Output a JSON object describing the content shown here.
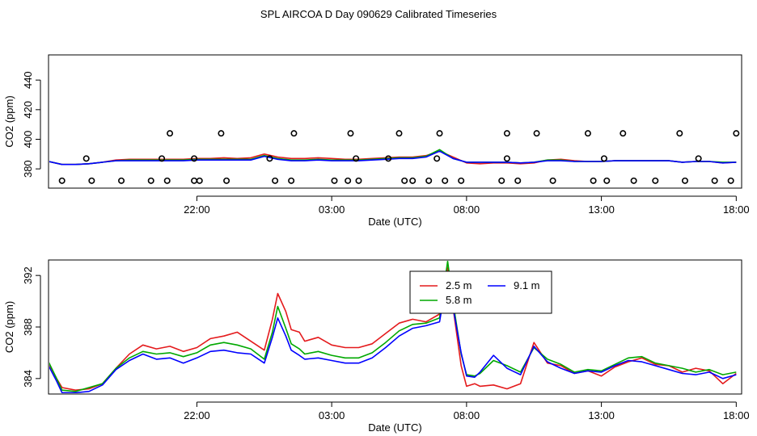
{
  "title": "SPL AIRCOA D  Day 090629  Calibrated Timeseries",
  "chart_data": [
    {
      "type": "line",
      "id": "top",
      "xlabel": "Date (UTC)",
      "ylabel": "CO2 (ppm)",
      "x_unit": "hours since 00:00 UTC",
      "xlim": [
        16.5,
        18.2
      ],
      "x_ticks": [
        22,
        27,
        32,
        37,
        42
      ],
      "x_tick_labels": [
        "22:00",
        "03:00",
        "08:00",
        "13:00",
        "18:00"
      ],
      "ylim": [
        367,
        457
      ],
      "y_ticks": [
        380,
        400,
        420,
        440
      ],
      "grid": false,
      "series": [
        {
          "key": "s25",
          "color": "#e41a1c",
          "x": [
            16.5,
            17.0,
            17.5,
            18.0,
            18.5,
            19.0,
            19.5,
            20.0,
            20.5,
            21.0,
            21.5,
            22.0,
            22.5,
            23.0,
            23.5,
            24.0,
            24.5,
            25.0,
            25.5,
            26.0,
            26.5,
            27.0,
            27.5,
            28.0,
            28.5,
            29.0,
            29.5,
            30.0,
            30.5,
            31.0,
            31.5,
            32.0,
            32.5,
            33.0,
            33.5,
            34.0,
            34.5,
            35.0,
            35.5,
            36.0,
            36.5,
            37.0,
            37.5,
            38.0,
            38.5,
            39.0,
            39.5,
            40.0,
            40.5,
            41.0,
            41.5,
            42.0
          ],
          "y": [
            385,
            383,
            383,
            383.5,
            384.5,
            386,
            386.5,
            386.5,
            386.5,
            386.5,
            386.5,
            387,
            387,
            387.5,
            387,
            387.5,
            390,
            388,
            387,
            387,
            387.5,
            387,
            386.5,
            386.5,
            387,
            387.5,
            388,
            388,
            389,
            392,
            388,
            384,
            383.5,
            384,
            384,
            383.5,
            384,
            386,
            386.5,
            385.5,
            385,
            385,
            385.5,
            385.5,
            385.5,
            385.5,
            385.5,
            384.5,
            385,
            385,
            384,
            384.5
          ]
        },
        {
          "key": "s58",
          "color": "#00a800",
          "x": [
            16.5,
            17.0,
            17.5,
            18.0,
            18.5,
            19.0,
            19.5,
            20.0,
            20.5,
            21.0,
            21.5,
            22.0,
            22.5,
            23.0,
            23.5,
            24.0,
            24.5,
            25.0,
            25.5,
            26.0,
            26.5,
            27.0,
            27.5,
            28.0,
            28.5,
            29.0,
            29.5,
            30.0,
            30.5,
            31.0,
            31.5,
            32.0,
            32.5,
            33.0,
            33.5,
            34.0,
            34.5,
            35.0,
            35.5,
            36.0,
            36.5,
            37.0,
            37.5,
            38.0,
            38.5,
            39.0,
            39.5,
            40.0,
            40.5,
            41.0,
            41.5,
            42.0
          ],
          "y": [
            385,
            383,
            383,
            383.5,
            384.5,
            385.5,
            386,
            386,
            386,
            386,
            386,
            386.5,
            386.5,
            386.5,
            386.5,
            386.5,
            389,
            387,
            386,
            386,
            386.5,
            386,
            386,
            386,
            386.5,
            387,
            387.5,
            387.5,
            388.5,
            393,
            387,
            384.5,
            384.5,
            384.5,
            384.5,
            384,
            384.5,
            386,
            386,
            385,
            385,
            385,
            385.5,
            385.5,
            385.5,
            385.5,
            385.5,
            384.5,
            385,
            385,
            384.5,
            384.5
          ]
        },
        {
          "key": "s91",
          "color": "#0000ff",
          "x": [
            16.5,
            17.0,
            17.5,
            18.0,
            18.5,
            19.0,
            19.5,
            20.0,
            20.5,
            21.0,
            21.5,
            22.0,
            22.5,
            23.0,
            23.5,
            24.0,
            24.5,
            25.0,
            25.5,
            26.0,
            26.5,
            27.0,
            27.5,
            28.0,
            28.5,
            29.0,
            29.5,
            30.0,
            30.5,
            31.0,
            31.5,
            32.0,
            32.5,
            33.0,
            33.5,
            34.0,
            34.5,
            35.0,
            35.5,
            36.0,
            36.5,
            37.0,
            37.5,
            38.0,
            38.5,
            39.0,
            39.5,
            40.0,
            40.5,
            41.0,
            41.5,
            42.0
          ],
          "y": [
            385,
            383,
            383,
            383.5,
            384.5,
            385.5,
            385.5,
            385.5,
            385.5,
            385.5,
            385.5,
            386,
            386,
            386,
            386,
            386,
            388.5,
            386.5,
            385.5,
            385.5,
            386,
            385.5,
            385.5,
            385.5,
            386,
            386.5,
            387,
            387,
            388,
            392,
            387,
            384.5,
            384.5,
            384.5,
            384.5,
            384,
            384.5,
            385.5,
            385.5,
            385,
            385,
            385,
            385.5,
            385.5,
            385.5,
            385.5,
            385.5,
            384.5,
            385,
            385,
            384,
            384.5
          ]
        }
      ],
      "markers": {
        "symbol": "o",
        "x": [
          17.0,
          18.1,
          19.2,
          20.3,
          20.9,
          21.9,
          22.1,
          23.1,
          24.9,
          25.5,
          27.1,
          27.6,
          28.0,
          29.7,
          30.0,
          30.6,
          31.2,
          31.8,
          33.3,
          33.9,
          35.2,
          36.7,
          37.2,
          38.2,
          39.0,
          40.1,
          41.2,
          41.8,
          21.0,
          22.9,
          25.6,
          27.7,
          29.5,
          31.0,
          33.5,
          34.6,
          36.5,
          37.8,
          39.9,
          42.0,
          17.9,
          20.7,
          21.9,
          24.7,
          27.9,
          29.1,
          30.9,
          33.5,
          37.1,
          40.6
        ],
        "y": [
          372,
          372,
          372,
          372,
          372,
          372,
          372,
          372,
          372,
          372,
          372,
          372,
          372,
          372,
          372,
          372,
          372,
          372,
          372,
          372,
          372,
          372,
          372,
          372,
          372,
          372,
          372,
          372,
          404,
          404,
          404,
          404,
          404,
          404,
          404,
          404,
          404,
          404,
          404,
          404,
          387,
          387,
          387,
          387,
          387,
          387,
          387,
          387,
          387,
          387
        ]
      }
    },
    {
      "type": "line",
      "id": "bottom",
      "xlabel": "Date (UTC)",
      "ylabel": "CO2 (ppm)",
      "x_unit": "hours since 00:00 UTC",
      "xlim": [
        16.5,
        42.2
      ],
      "x_ticks": [
        22,
        27,
        32,
        37,
        42
      ],
      "x_tick_labels": [
        "22:00",
        "03:00",
        "08:00",
        "13:00",
        "18:00"
      ],
      "ylim": [
        382.8,
        393.2
      ],
      "y_ticks": [
        384,
        388,
        392
      ],
      "grid": false,
      "legend": {
        "position": "top-center",
        "entries": [
          {
            "label": "2.5 m",
            "color": "#e41a1c"
          },
          {
            "label": "5.8 m",
            "color": "#00a800"
          },
          {
            "label": "9.1 m",
            "color": "#0000ff"
          }
        ]
      },
      "series": [
        {
          "name": "2.5 m",
          "color": "#e41a1c",
          "x": [
            16.5,
            16.8,
            17.0,
            17.5,
            18.0,
            18.5,
            19.0,
            19.5,
            20.0,
            20.5,
            21.0,
            21.5,
            22.0,
            22.5,
            23.0,
            23.5,
            24.0,
            24.5,
            24.8,
            25.0,
            25.3,
            25.5,
            25.8,
            26.0,
            26.5,
            27.0,
            27.5,
            28.0,
            28.5,
            29.0,
            29.5,
            30.0,
            30.5,
            31.0,
            31.3,
            31.5,
            31.8,
            32.0,
            32.3,
            32.5,
            33.0,
            33.5,
            34.0,
            34.5,
            35.0,
            35.5,
            36.0,
            36.5,
            37.0,
            37.5,
            38.0,
            38.5,
            39.0,
            39.5,
            40.0,
            40.5,
            41.0,
            41.5,
            42.0
          ],
          "y": [
            385.2,
            384.0,
            383.3,
            383.1,
            383.2,
            383.6,
            384.8,
            385.9,
            386.6,
            386.3,
            386.5,
            386.1,
            386.4,
            387.1,
            387.3,
            387.6,
            386.9,
            386.2,
            388.6,
            390.6,
            389.2,
            387.8,
            387.6,
            386.9,
            387.2,
            386.6,
            386.4,
            386.4,
            386.7,
            387.5,
            388.3,
            388.6,
            388.4,
            389.0,
            392.6,
            389.5,
            385.0,
            383.4,
            383.6,
            383.4,
            383.5,
            383.2,
            383.6,
            386.8,
            385.2,
            385.0,
            384.4,
            384.6,
            384.2,
            384.9,
            385.3,
            385.6,
            385.1,
            385.0,
            384.5,
            384.8,
            384.6,
            383.6,
            384.4
          ]
        },
        {
          "name": "5.8 m",
          "color": "#00a800",
          "x": [
            16.5,
            16.8,
            17.0,
            17.5,
            18.0,
            18.5,
            19.0,
            19.5,
            20.0,
            20.5,
            21.0,
            21.5,
            22.0,
            22.5,
            23.0,
            23.5,
            24.0,
            24.5,
            24.8,
            25.0,
            25.3,
            25.5,
            25.8,
            26.0,
            26.5,
            27.0,
            27.5,
            28.0,
            28.5,
            29.0,
            29.5,
            30.0,
            30.5,
            31.0,
            31.3,
            31.5,
            31.8,
            32.0,
            32.3,
            32.5,
            33.0,
            33.5,
            34.0,
            34.5,
            35.0,
            35.5,
            36.0,
            36.5,
            37.0,
            37.5,
            38.0,
            38.5,
            39.0,
            39.5,
            40.0,
            40.5,
            41.0,
            41.5,
            42.0
          ],
          "y": [
            385.3,
            384.0,
            383.1,
            383.0,
            383.3,
            383.6,
            384.8,
            385.6,
            386.1,
            385.9,
            386.0,
            385.7,
            386.0,
            386.6,
            386.8,
            386.6,
            386.3,
            385.5,
            387.6,
            389.6,
            387.9,
            386.7,
            386.3,
            385.9,
            386.1,
            385.8,
            385.6,
            385.6,
            386.0,
            386.8,
            387.7,
            388.2,
            388.3,
            388.7,
            393.1,
            389.9,
            385.9,
            384.3,
            384.2,
            384.4,
            385.4,
            385.0,
            384.5,
            386.4,
            385.5,
            385.1,
            384.5,
            384.7,
            384.6,
            385.1,
            385.6,
            385.7,
            385.2,
            385.0,
            384.8,
            384.5,
            384.7,
            384.3,
            384.5
          ]
        },
        {
          "name": "9.1 m",
          "color": "#0000ff",
          "x": [
            16.5,
            16.8,
            17.0,
            17.5,
            18.0,
            18.5,
            19.0,
            19.5,
            20.0,
            20.5,
            21.0,
            21.5,
            22.0,
            22.5,
            23.0,
            23.5,
            24.0,
            24.5,
            24.8,
            25.0,
            25.3,
            25.5,
            25.8,
            26.0,
            26.5,
            27.0,
            27.5,
            28.0,
            28.5,
            29.0,
            29.5,
            30.0,
            30.5,
            31.0,
            31.3,
            31.5,
            31.8,
            32.0,
            32.3,
            32.5,
            33.0,
            33.5,
            34.0,
            34.5,
            35.0,
            35.5,
            36.0,
            36.5,
            37.0,
            37.5,
            38.0,
            38.5,
            39.0,
            39.5,
            40.0,
            40.5,
            41.0,
            41.5,
            42.0
          ],
          "y": [
            385.0,
            383.8,
            382.9,
            382.9,
            383.0,
            383.5,
            384.7,
            385.4,
            385.9,
            385.5,
            385.6,
            385.2,
            385.6,
            386.1,
            386.2,
            386.0,
            385.9,
            385.2,
            387.2,
            388.7,
            387.3,
            386.2,
            385.8,
            385.5,
            385.6,
            385.4,
            385.2,
            385.2,
            385.6,
            386.4,
            387.3,
            387.9,
            388.1,
            388.4,
            392.1,
            389.5,
            386.0,
            384.2,
            384.1,
            384.5,
            385.8,
            384.8,
            384.3,
            386.5,
            385.3,
            384.8,
            384.4,
            384.6,
            384.5,
            385.0,
            385.4,
            385.3,
            385.0,
            384.7,
            384.4,
            384.3,
            384.5,
            384.0,
            384.3
          ]
        }
      ]
    }
  ]
}
